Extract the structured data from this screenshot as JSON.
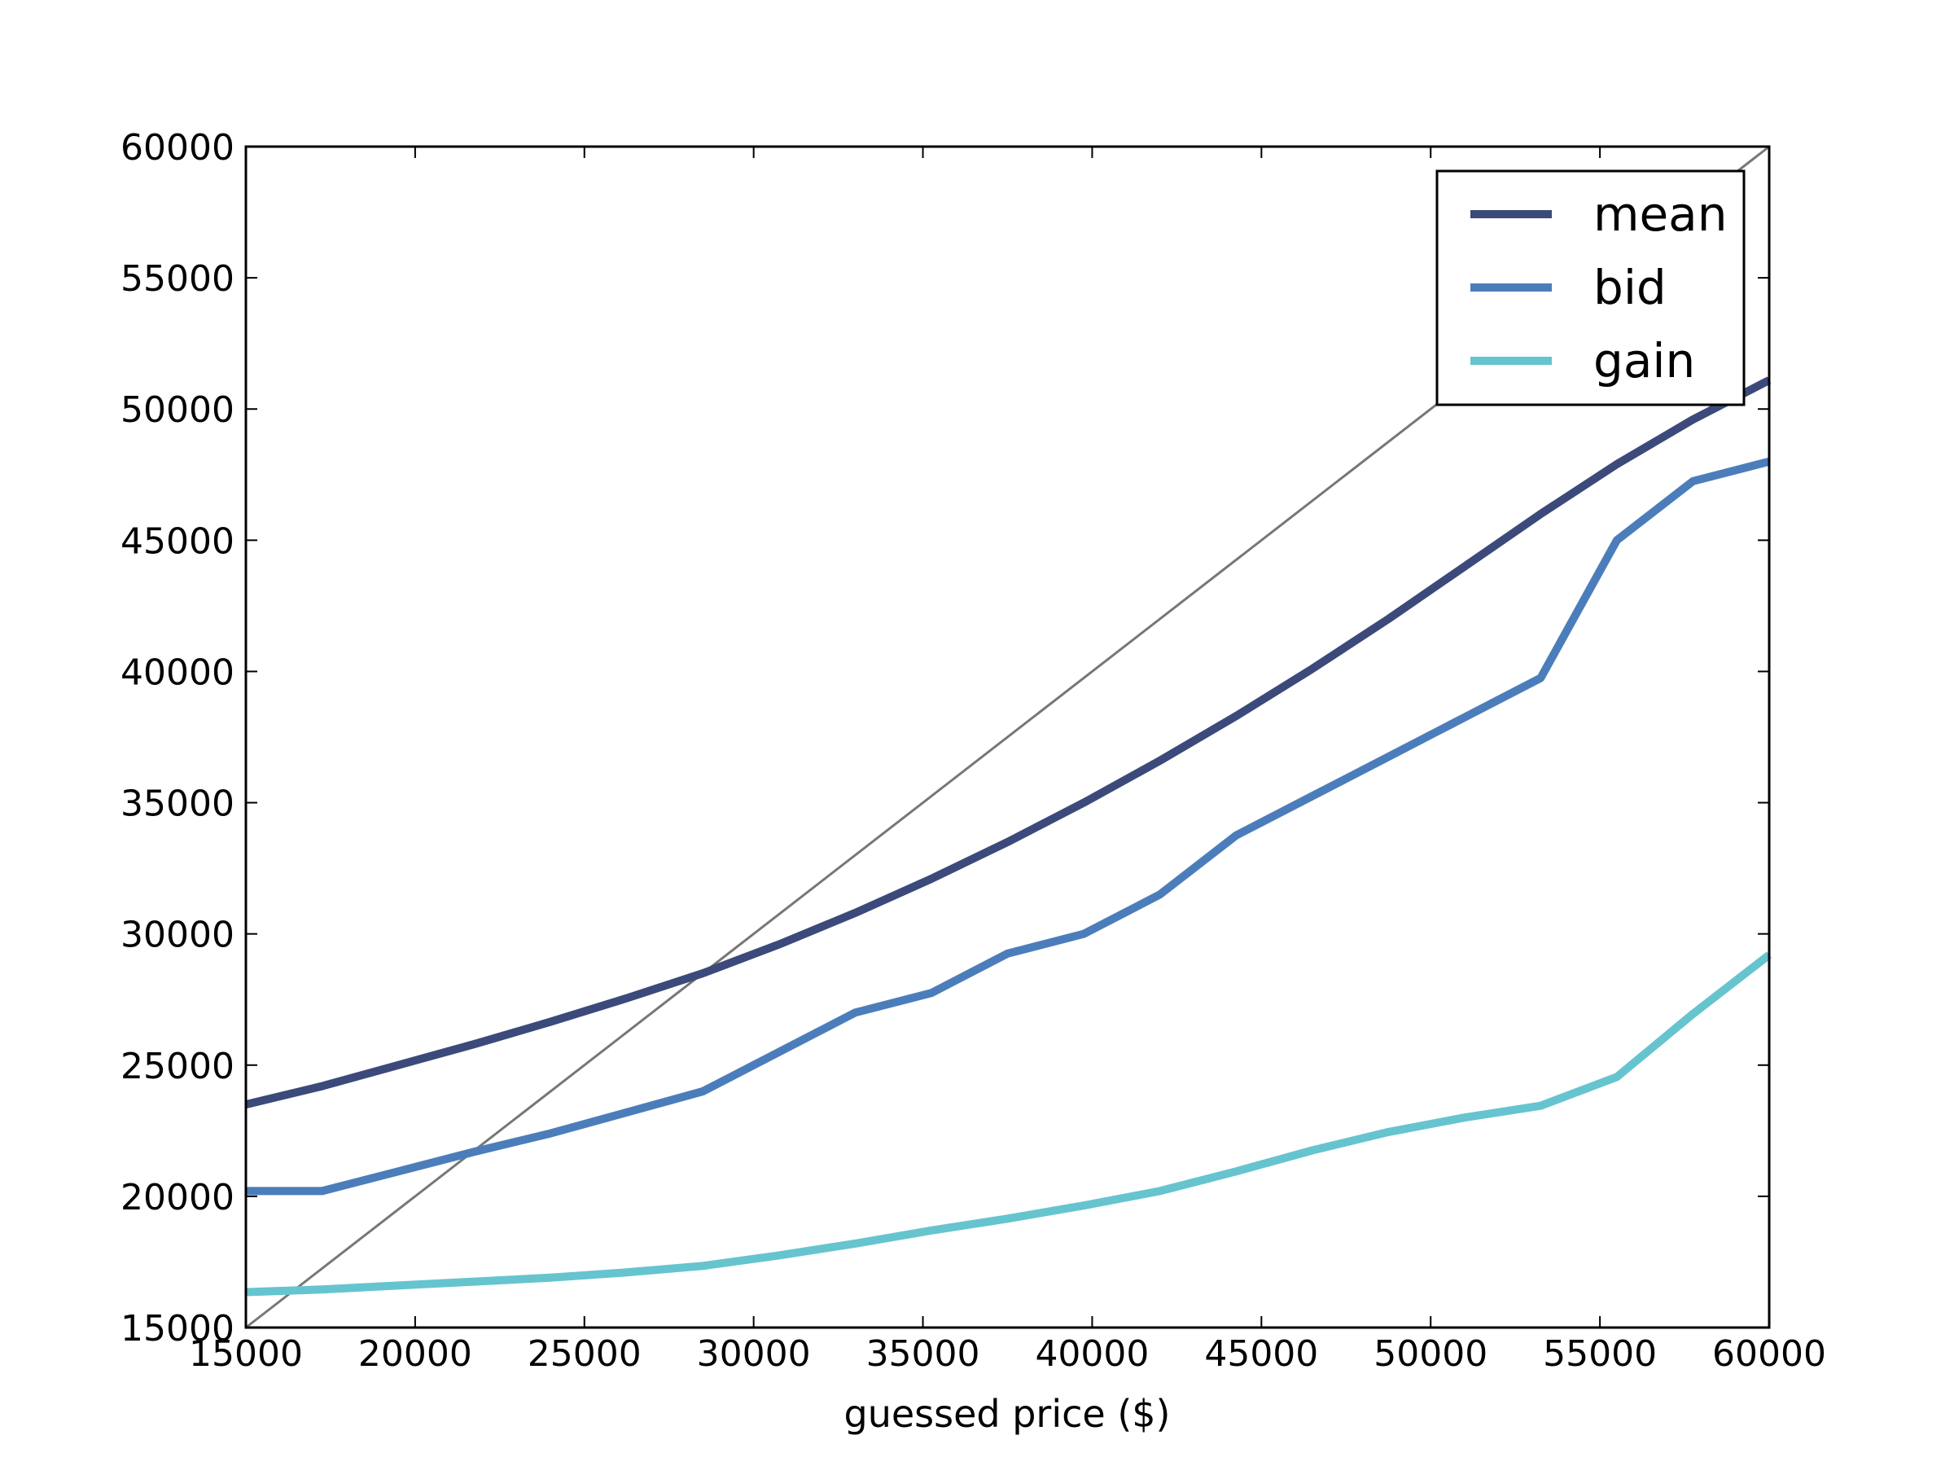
{
  "chart_data": {
    "type": "line",
    "xlabel": "guessed price ($)",
    "ylabel": "",
    "xlim": [
      15000,
      60000
    ],
    "ylim": [
      15000,
      60000
    ],
    "xticks": [
      15000,
      20000,
      25000,
      30000,
      35000,
      40000,
      45000,
      50000,
      55000,
      60000
    ],
    "yticks": [
      15000,
      20000,
      25000,
      30000,
      35000,
      40000,
      45000,
      50000,
      55000,
      60000
    ],
    "grid": false,
    "legend_position": "top-right",
    "reference_line": {
      "x": [
        15000,
        60000
      ],
      "y": [
        15000,
        60000
      ],
      "color": "#777777"
    },
    "series": [
      {
        "name": "mean",
        "color": "#3b4a7a",
        "x": [
          15000,
          17250,
          19500,
          21750,
          24000,
          26250,
          28500,
          30750,
          33000,
          35250,
          37500,
          39750,
          42000,
          44250,
          46500,
          48750,
          51000,
          53250,
          55500,
          57750,
          60000
        ],
        "y": [
          23500,
          24200,
          25000,
          25800,
          26650,
          27550,
          28500,
          29600,
          30800,
          32100,
          33500,
          35000,
          36600,
          38300,
          40100,
          42000,
          44000,
          46000,
          47900,
          49600,
          51100
        ]
      },
      {
        "name": "bid",
        "color": "#4c7dbb",
        "x": [
          15000,
          17250,
          19500,
          21750,
          24000,
          26250,
          28500,
          30750,
          33000,
          35250,
          37500,
          39750,
          42000,
          44250,
          46500,
          48750,
          51000,
          53250,
          55500,
          57750,
          60000
        ],
        "y": [
          20200,
          20200,
          20950,
          21700,
          22400,
          23200,
          24000,
          25500,
          27000,
          27750,
          29250,
          30000,
          31500,
          33750,
          35250,
          36750,
          38250,
          39750,
          45000,
          47250,
          48000
        ]
      },
      {
        "name": "gain",
        "color": "#66c4cf",
        "x": [
          15000,
          17250,
          19500,
          21750,
          24000,
          26250,
          28500,
          30750,
          33000,
          35250,
          37500,
          39750,
          42000,
          44250,
          46500,
          48750,
          51000,
          53250,
          55500,
          57750,
          60000
        ],
        "y": [
          16350,
          16450,
          16600,
          16750,
          16900,
          17100,
          17350,
          17750,
          18200,
          18700,
          19150,
          19650,
          20200,
          20950,
          21750,
          22450,
          23000,
          23450,
          24550,
          26950,
          29200
        ]
      }
    ]
  }
}
